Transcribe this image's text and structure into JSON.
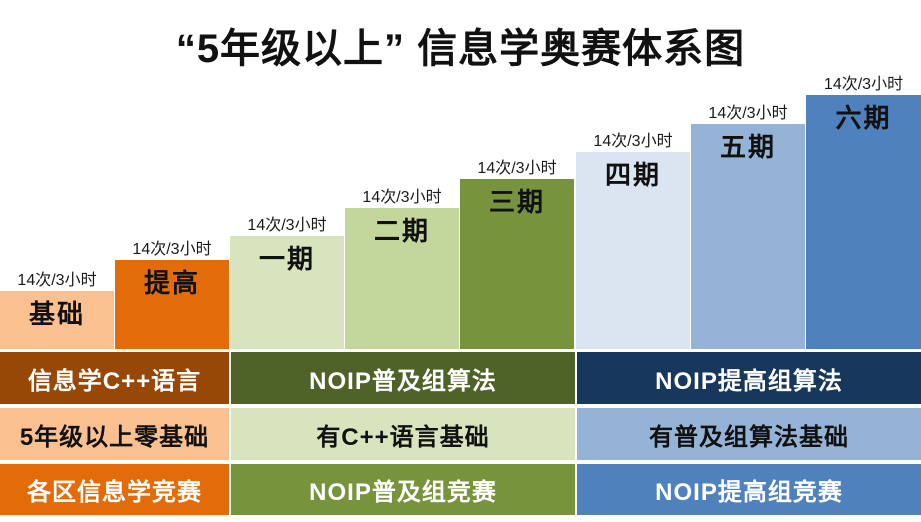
{
  "title": "“5年级以上” 信息学奥赛体系图",
  "columns": [
    {
      "id": "jichu",
      "label": "基础",
      "sessions": "14次/3小时",
      "color": "#FAC090"
    },
    {
      "id": "tigao",
      "label": "提高",
      "sessions": "14次/3小时",
      "color": "#E36C0A"
    },
    {
      "id": "qi-1",
      "label": "一期",
      "sessions": "14次/3小时",
      "color": "#D7E4BD"
    },
    {
      "id": "qi-2",
      "label": "二期",
      "sessions": "14次/3小时",
      "color": "#C3D69B"
    },
    {
      "id": "qi-3",
      "label": "三期",
      "sessions": "14次/3小时",
      "color": "#77933C"
    },
    {
      "id": "qi-4",
      "label": "四期",
      "sessions": "14次/3小时",
      "color": "#DBE5F1"
    },
    {
      "id": "qi-5",
      "label": "五期",
      "sessions": "14次/3小时",
      "color": "#95B3D7"
    },
    {
      "id": "qi-6",
      "label": "六期",
      "sessions": "14次/3小时",
      "color": "#4F81BD"
    }
  ],
  "bands": [
    {
      "name": "course-track",
      "cells": [
        {
          "label": "信息学C++语言",
          "color": "#974806",
          "text_color": "#FFFFFF"
        },
        {
          "label": "NOIP普及组算法",
          "color": "#4F6228",
          "text_color": "#FFFFFF"
        },
        {
          "label": "NOIP提高组算法",
          "color": "#17375D",
          "text_color": "#FFFFFF"
        }
      ]
    },
    {
      "name": "prerequisite",
      "cells": [
        {
          "label": "5年级以上零基础",
          "color": "#FAC090",
          "text_color": "#111111"
        },
        {
          "label": "有C++语言基础",
          "color": "#D7E4BD",
          "text_color": "#111111"
        },
        {
          "label": "有普及组算法基础",
          "color": "#95B3D7",
          "text_color": "#111111"
        }
      ]
    },
    {
      "name": "competition",
      "cells": [
        {
          "label": "各区信息学竞赛",
          "color": "#E36C0A",
          "text_color": "#FFFFFF"
        },
        {
          "label": "NOIP普及组竞赛",
          "color": "#77933C",
          "text_color": "#FFFFFF"
        },
        {
          "label": "NOIP提高组竞赛",
          "color": "#4F81BD",
          "text_color": "#FFFFFF"
        }
      ]
    }
  ]
}
